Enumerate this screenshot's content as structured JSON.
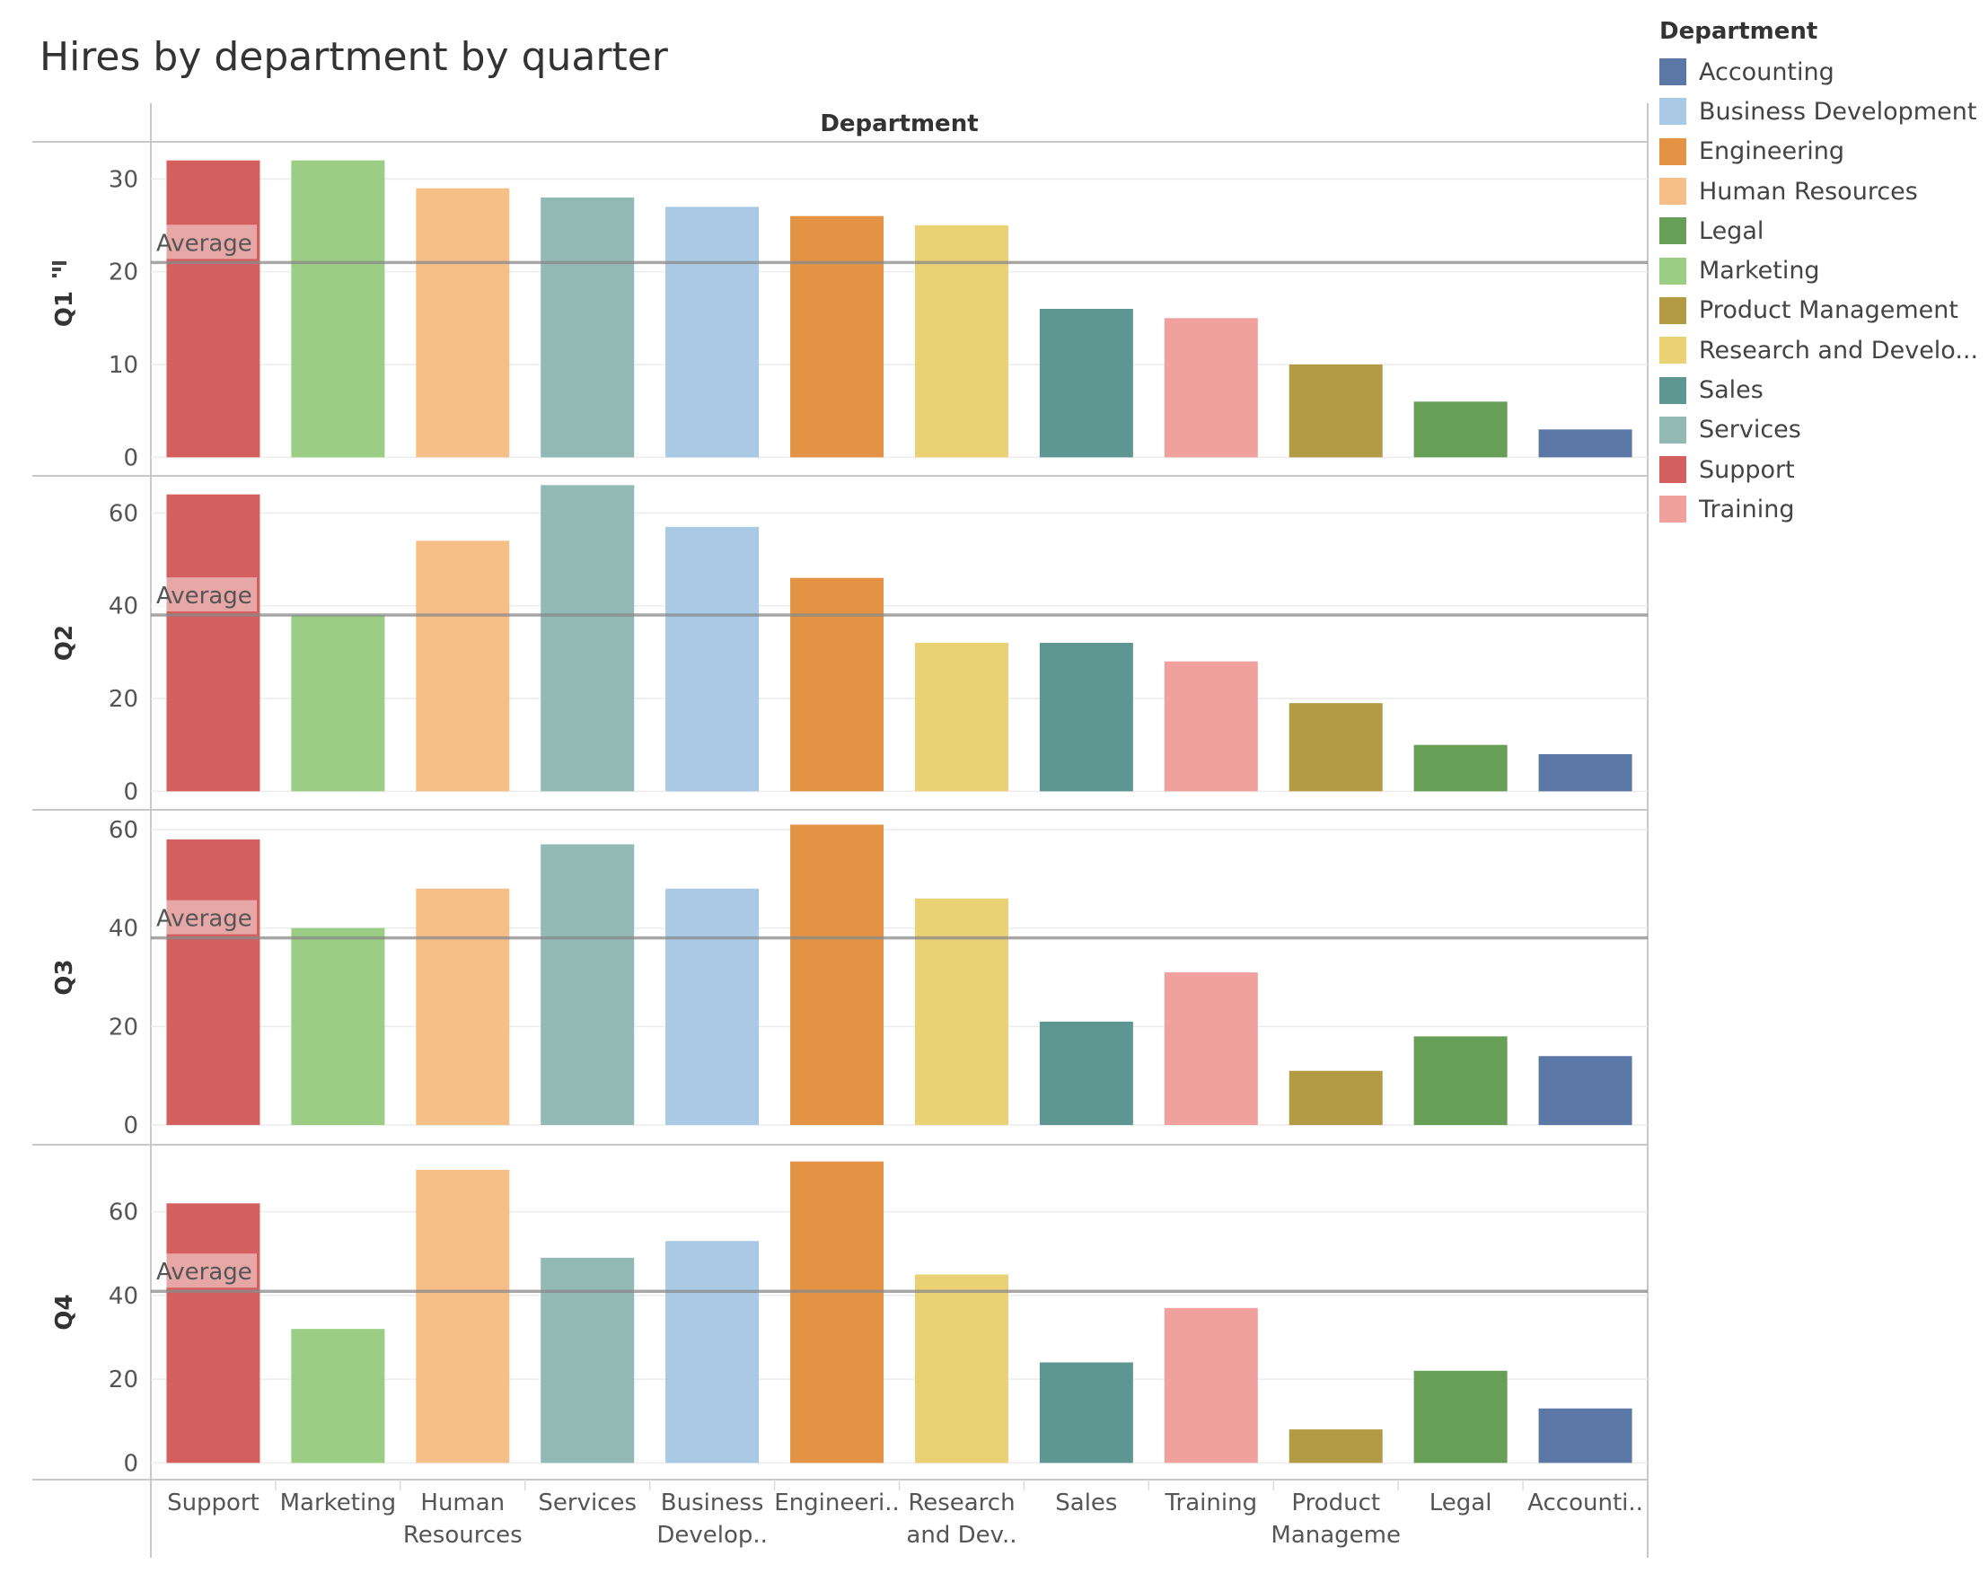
{
  "title": "Hires by department by quarter",
  "legend": {
    "title": "Department",
    "items": [
      {
        "label": "Accounting",
        "color": "#5b77a6"
      },
      {
        "label": "Business Development",
        "color": "#a9c9e5"
      },
      {
        "label": "Engineering",
        "color": "#e49344"
      },
      {
        "label": "Human Resources",
        "color": "#f6bf87"
      },
      {
        "label": "Legal",
        "color": "#689f56"
      },
      {
        "label": "Marketing",
        "color": "#9bce84"
      },
      {
        "label": "Product Management",
        "color": "#b29b42"
      },
      {
        "label": "Research and Develo...",
        "color": "#e9d174"
      },
      {
        "label": "Sales",
        "color": "#5e9791"
      },
      {
        "label": "Services",
        "color": "#93b9b4"
      },
      {
        "label": "Support",
        "color": "#d45f5f"
      },
      {
        "label": "Training",
        "color": "#f0a19d"
      }
    ]
  },
  "chart_data": {
    "type": "bar",
    "title": "Hires by department by quarter",
    "column_header": "Department",
    "row_field_icon": "sort-icon",
    "categories": [
      "Support",
      "Marketing",
      "Human Resources",
      "Services",
      "Business Develop..",
      "Engineeri..",
      "Research and Dev..",
      "Sales",
      "Training",
      "Product Manageme",
      "Legal",
      "Accounti.."
    ],
    "category_labels": [
      [
        "Support"
      ],
      [
        "Marketing"
      ],
      [
        "Human",
        "Resources"
      ],
      [
        "Services"
      ],
      [
        "Business",
        "Develop.."
      ],
      [
        "Engineeri.."
      ],
      [
        "Research",
        "and Dev.."
      ],
      [
        "Sales"
      ],
      [
        "Training"
      ],
      [
        "Product",
        "Manageme"
      ],
      [
        "Legal"
      ],
      [
        "Accounti.."
      ]
    ],
    "colors": [
      "#d45f5f",
      "#9bce84",
      "#f6bf87",
      "#93b9b4",
      "#a9c9e5",
      "#e49344",
      "#e9d174",
      "#5e9791",
      "#f0a19d",
      "#b29b42",
      "#689f56",
      "#5b77a6"
    ],
    "grid": true,
    "reference_line_label": "Average",
    "panels": [
      {
        "row_label": "Q1",
        "values": [
          32,
          32,
          29,
          28,
          27,
          26,
          25,
          16,
          15,
          10,
          6,
          3
        ],
        "average": 21,
        "ylim": [
          -2,
          34
        ],
        "yticks": [
          0,
          10,
          20,
          30
        ]
      },
      {
        "row_label": "Q2",
        "values": [
          64,
          38,
          54,
          66,
          57,
          46,
          32,
          32,
          28,
          19,
          10,
          8
        ],
        "average": 38,
        "ylim": [
          -4,
          68
        ],
        "yticks": [
          0,
          20,
          40,
          60
        ]
      },
      {
        "row_label": "Q3",
        "values": [
          58,
          40,
          48,
          57,
          48,
          61,
          46,
          21,
          31,
          11,
          18,
          14
        ],
        "average": 38,
        "ylim": [
          -4,
          64
        ],
        "yticks": [
          0,
          20,
          40,
          60
        ]
      },
      {
        "row_label": "Q4",
        "values": [
          62,
          32,
          70,
          49,
          53,
          72,
          45,
          24,
          37,
          8,
          22,
          13
        ],
        "average": 41,
        "ylim": [
          -4,
          76
        ],
        "yticks": [
          0,
          20,
          40,
          60
        ]
      }
    ]
  }
}
